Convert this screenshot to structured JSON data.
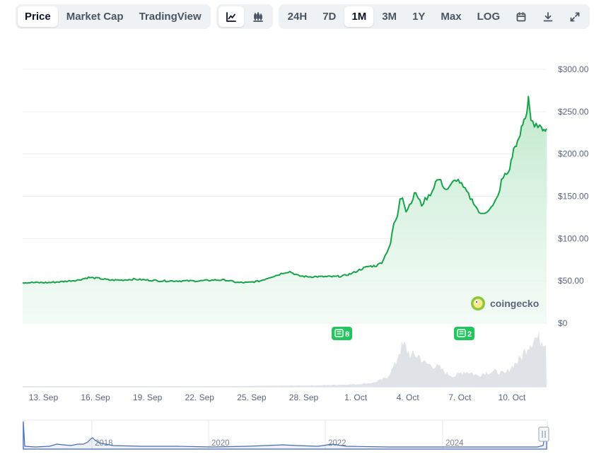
{
  "toolbar": {
    "view_tabs": [
      {
        "label": "Price",
        "active": true
      },
      {
        "label": "Market Cap",
        "active": false
      },
      {
        "label": "TradingView",
        "active": false
      }
    ],
    "chart_style_buttons": [
      {
        "icon": "line-chart-icon",
        "active": true
      },
      {
        "icon": "candlestick-chart-icon",
        "active": false
      }
    ],
    "ranges": [
      {
        "label": "24H",
        "active": false
      },
      {
        "label": "7D",
        "active": false
      },
      {
        "label": "1M",
        "active": true
      },
      {
        "label": "3M",
        "active": false
      },
      {
        "label": "1Y",
        "active": false
      },
      {
        "label": "Max",
        "active": false
      },
      {
        "label": "LOG",
        "active": false
      }
    ],
    "tool_icons": [
      "calendar-icon",
      "download-icon",
      "expand-icon"
    ]
  },
  "watermark": "coingecko",
  "news_badges": [
    {
      "count": "8",
      "date": "29 Sep"
    },
    {
      "count": "2",
      "date": "6 Oct"
    }
  ],
  "colors": {
    "line": "#16a34a",
    "area_top": "#bbe8c8",
    "badge": "#22c55e",
    "volume": "#d9dde3",
    "navigator_line": "#4a6bb5"
  },
  "chart_data": {
    "type": "area",
    "y_ticks": [
      "$300.00",
      "$250.00",
      "$200.00",
      "$150.00",
      "$100.00",
      "$50.00",
      "$0"
    ],
    "ylim": [
      0,
      300
    ],
    "x_ticks": [
      "13. Sep",
      "16. Sep",
      "19. Sep",
      "22. Sep",
      "25. Sep",
      "28. Sep",
      "1. Oct",
      "4. Oct",
      "7. Oct",
      "10. Oct"
    ],
    "x_tick_days": [
      2,
      5,
      8,
      11,
      14,
      17,
      20,
      23,
      26,
      29
    ],
    "x_days_range": [
      0.8,
      31.0
    ],
    "price_series": [
      [
        0.8,
        48
      ],
      [
        1.5,
        48
      ],
      [
        2.3,
        48
      ],
      [
        3.0,
        49
      ],
      [
        3.5,
        50
      ],
      [
        4.0,
        51
      ],
      [
        4.6,
        54
      ],
      [
        5.2,
        53
      ],
      [
        5.8,
        51
      ],
      [
        6.5,
        51
      ],
      [
        7.2,
        52
      ],
      [
        8.0,
        51
      ],
      [
        8.8,
        50
      ],
      [
        9.5,
        50
      ],
      [
        10.2,
        50
      ],
      [
        11.0,
        50
      ],
      [
        11.8,
        51
      ],
      [
        12.5,
        51
      ],
      [
        13.2,
        48
      ],
      [
        13.8,
        48
      ],
      [
        14.5,
        50
      ],
      [
        15.0,
        54
      ],
      [
        15.5,
        57
      ],
      [
        15.9,
        60
      ],
      [
        16.2,
        61
      ],
      [
        16.7,
        56
      ],
      [
        17.2,
        55
      ],
      [
        17.8,
        55
      ],
      [
        18.3,
        55
      ],
      [
        18.8,
        55
      ],
      [
        19.3,
        56
      ],
      [
        19.8,
        59
      ],
      [
        20.2,
        63
      ],
      [
        20.7,
        67
      ],
      [
        21.2,
        68
      ],
      [
        21.5,
        72
      ],
      [
        21.7,
        80
      ],
      [
        22.0,
        94
      ],
      [
        22.2,
        118
      ],
      [
        22.4,
        125
      ],
      [
        22.55,
        148
      ],
      [
        22.7,
        150
      ],
      [
        22.9,
        132
      ],
      [
        23.1,
        140
      ],
      [
        23.3,
        148
      ],
      [
        23.45,
        155
      ],
      [
        23.6,
        147
      ],
      [
        23.8,
        140
      ],
      [
        24.0,
        146
      ],
      [
        24.2,
        150
      ],
      [
        24.4,
        156
      ],
      [
        24.6,
        167
      ],
      [
        24.8,
        170
      ],
      [
        25.0,
        164
      ],
      [
        25.2,
        158
      ],
      [
        25.4,
        160
      ],
      [
        25.6,
        166
      ],
      [
        25.8,
        170
      ],
      [
        26.0,
        167
      ],
      [
        26.2,
        160
      ],
      [
        26.4,
        155
      ],
      [
        26.6,
        148
      ],
      [
        26.8,
        143
      ],
      [
        27.0,
        135
      ],
      [
        27.2,
        128
      ],
      [
        27.5,
        132
      ],
      [
        27.9,
        138
      ],
      [
        28.2,
        150
      ],
      [
        28.4,
        168
      ],
      [
        28.6,
        175
      ],
      [
        28.8,
        178
      ],
      [
        28.95,
        190
      ],
      [
        29.1,
        205
      ],
      [
        29.25,
        212
      ],
      [
        29.4,
        215
      ],
      [
        29.55,
        230
      ],
      [
        29.7,
        240
      ],
      [
        29.85,
        248
      ],
      [
        29.95,
        268
      ],
      [
        30.1,
        240
      ],
      [
        30.3,
        230
      ],
      [
        30.5,
        235
      ],
      [
        30.7,
        228
      ],
      [
        30.85,
        232
      ],
      [
        31.0,
        230
      ]
    ],
    "volume_profile": [
      [
        0.8,
        0.01
      ],
      [
        5,
        0.01
      ],
      [
        10,
        0.01
      ],
      [
        15,
        0.02
      ],
      [
        18,
        0.03
      ],
      [
        20,
        0.05
      ],
      [
        21,
        0.08
      ],
      [
        21.8,
        0.18
      ],
      [
        22.3,
        0.45
      ],
      [
        22.5,
        0.7
      ],
      [
        22.8,
        0.8
      ],
      [
        23.2,
        0.6
      ],
      [
        23.6,
        0.62
      ],
      [
        24.0,
        0.45
      ],
      [
        24.4,
        0.42
      ],
      [
        24.8,
        0.38
      ],
      [
        25.3,
        0.25
      ],
      [
        25.7,
        0.2
      ],
      [
        26.2,
        0.3
      ],
      [
        26.6,
        0.28
      ],
      [
        27.0,
        0.22
      ],
      [
        27.5,
        0.28
      ],
      [
        28.0,
        0.3
      ],
      [
        28.6,
        0.25
      ],
      [
        29.0,
        0.4
      ],
      [
        29.5,
        0.55
      ],
      [
        29.9,
        0.8
      ],
      [
        30.3,
        0.95
      ],
      [
        31.0,
        0.9
      ]
    ],
    "navigator_ticks": [
      "2018",
      "2020",
      "2022",
      "2024"
    ]
  }
}
